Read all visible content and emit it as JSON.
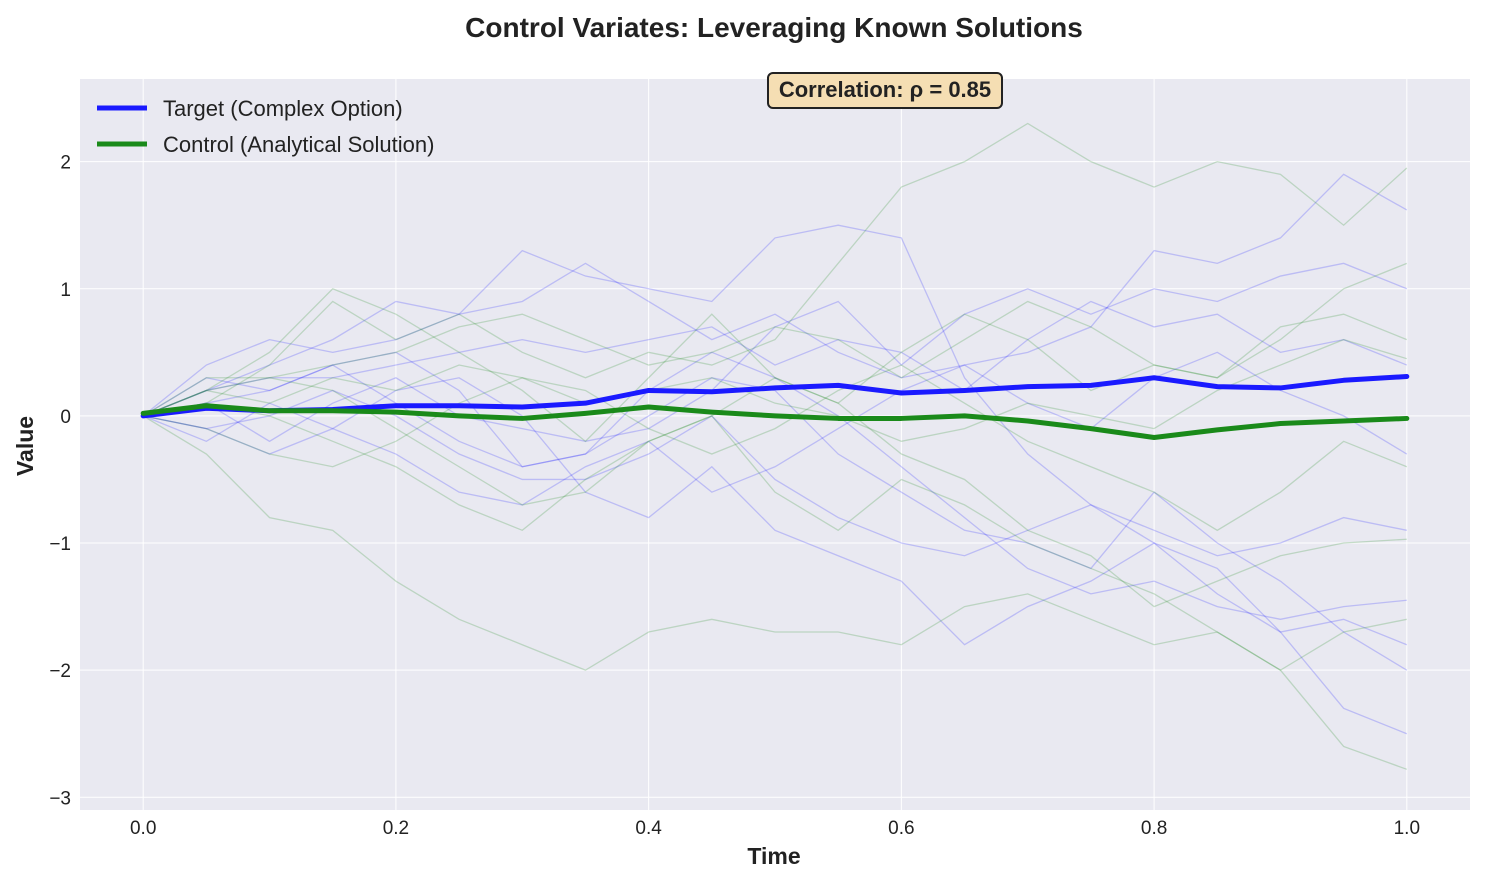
{
  "chart_data": {
    "type": "line",
    "title": "Control Variates: Leveraging Known Solutions",
    "xlabel": "Time",
    "ylabel": "Value",
    "xlim": [
      -0.05,
      1.05
    ],
    "ylim": [
      -3.1,
      2.65
    ],
    "x_ticks": [
      0.0,
      0.2,
      0.4,
      0.6,
      0.8,
      1.0
    ],
    "x_tick_labels": [
      "0.0",
      "0.2",
      "0.4",
      "0.6",
      "0.8",
      "1.0"
    ],
    "y_ticks": [
      2,
      1,
      0,
      -1,
      -2,
      -3
    ],
    "y_tick_labels": [
      "2",
      "1",
      "0",
      "−1",
      "−2",
      "−3"
    ],
    "grid": true,
    "legend_position": "top-left",
    "annotation": "Correlation: ρ = 0.85",
    "colors": {
      "target": "#1a1aff",
      "control": "#1a8a1a",
      "plot_bg": "#e9e9f1",
      "annot_bg": "#f5deb3"
    },
    "series": [
      {
        "name": "Target (Complex Option)",
        "role": "mean",
        "x": [
          0.0,
          0.05,
          0.1,
          0.15,
          0.2,
          0.25,
          0.3,
          0.35,
          0.4,
          0.45,
          0.5,
          0.55,
          0.6,
          0.65,
          0.7,
          0.75,
          0.8,
          0.85,
          0.9,
          0.95,
          1.0
        ],
        "y": [
          0.0,
          0.06,
          0.04,
          0.05,
          0.08,
          0.08,
          0.07,
          0.1,
          0.2,
          0.19,
          0.22,
          0.24,
          0.18,
          0.2,
          0.23,
          0.24,
          0.3,
          0.23,
          0.22,
          0.28,
          0.31
        ]
      },
      {
        "name": "Control (Analytical Solution)",
        "role": "mean",
        "x": [
          0.0,
          0.05,
          0.1,
          0.15,
          0.2,
          0.25,
          0.3,
          0.35,
          0.4,
          0.45,
          0.5,
          0.55,
          0.6,
          0.65,
          0.7,
          0.75,
          0.8,
          0.85,
          0.9,
          0.95,
          1.0
        ],
        "y": [
          0.02,
          0.08,
          0.04,
          0.04,
          0.03,
          0.0,
          -0.02,
          0.02,
          0.07,
          0.03,
          0.0,
          -0.02,
          -0.02,
          0.0,
          -0.04,
          -0.1,
          -0.17,
          -0.11,
          -0.06,
          -0.04,
          -0.02
        ]
      }
    ],
    "paths_x": [
      0.0,
      0.05,
      0.1,
      0.15,
      0.2,
      0.25,
      0.3,
      0.35,
      0.4,
      0.45,
      0.5,
      0.55,
      0.6,
      0.65,
      0.7,
      0.75,
      0.8,
      0.85,
      0.9,
      0.95,
      1.0
    ],
    "target_paths": [
      [
        0.0,
        0.4,
        0.6,
        0.5,
        0.6,
        0.8,
        0.9,
        1.2,
        0.9,
        0.6,
        0.8,
        0.5,
        0.3,
        0.4,
        0.5,
        0.7,
        1.3,
        1.2,
        1.4,
        1.9,
        1.62
      ],
      [
        0.0,
        0.2,
        0.4,
        0.6,
        0.9,
        0.8,
        1.3,
        1.1,
        1.0,
        0.9,
        1.4,
        1.5,
        1.4,
        0.3,
        -0.3,
        -0.7,
        -1.0,
        -1.4,
        -1.7,
        -1.6,
        -1.8
      ],
      [
        0.0,
        0.1,
        -0.2,
        0.1,
        0.3,
        0.0,
        -0.1,
        -0.2,
        -0.1,
        0.2,
        0.7,
        0.9,
        0.4,
        0.8,
        1.0,
        0.8,
        1.0,
        0.9,
        1.1,
        1.2,
        1.0
      ],
      [
        0.0,
        -0.1,
        -0.3,
        -0.1,
        0.2,
        0.3,
        0.0,
        -0.6,
        -0.8,
        -0.4,
        -0.9,
        -1.1,
        -1.3,
        -1.8,
        -1.5,
        -1.3,
        -1.0,
        -1.2,
        -1.7,
        -2.3,
        -2.5
      ],
      [
        0.0,
        0.3,
        0.2,
        0.4,
        0.5,
        0.2,
        -0.4,
        -0.3,
        0.0,
        0.3,
        0.2,
        -0.3,
        -0.6,
        -0.9,
        -1.0,
        -1.2,
        -0.6,
        -1.0,
        -1.3,
        -1.7,
        -2.0
      ],
      [
        0.0,
        -0.2,
        0.1,
        -0.1,
        -0.3,
        -0.6,
        -0.7,
        -0.4,
        -0.2,
        -0.6,
        -0.4,
        -0.1,
        0.2,
        0.4,
        0.1,
        -0.1,
        0.3,
        0.5,
        0.2,
        0.0,
        -0.3
      ],
      [
        0.0,
        0.1,
        0.2,
        0.4,
        0.1,
        -0.2,
        -0.4,
        -0.3,
        0.2,
        0.5,
        0.3,
        0.0,
        -0.4,
        -0.8,
        -1.2,
        -1.4,
        -1.3,
        -1.5,
        -1.6,
        -1.5,
        -1.45
      ],
      [
        0.0,
        0.2,
        0.3,
        0.3,
        0.4,
        0.5,
        0.6,
        0.5,
        0.6,
        0.7,
        0.4,
        0.6,
        0.5,
        0.2,
        0.6,
        0.9,
        0.7,
        0.8,
        0.5,
        0.6,
        0.4
      ],
      [
        0.0,
        -0.1,
        0.0,
        0.2,
        0.0,
        -0.3,
        -0.5,
        -0.5,
        -0.3,
        0.0,
        -0.5,
        -0.8,
        -1.0,
        -1.1,
        -0.9,
        -0.7,
        -0.9,
        -1.1,
        -1.0,
        -0.8,
        -0.9
      ]
    ],
    "control_paths": [
      [
        0.0,
        0.1,
        0.4,
        0.9,
        0.6,
        0.8,
        0.5,
        0.3,
        0.5,
        0.4,
        0.6,
        1.2,
        1.8,
        2.0,
        2.3,
        2.0,
        1.8,
        2.0,
        1.9,
        1.5,
        1.95
      ],
      [
        0.0,
        -0.3,
        -0.8,
        -0.9,
        -1.3,
        -1.6,
        -1.8,
        -2.0,
        -1.7,
        -1.6,
        -1.7,
        -1.7,
        -1.8,
        -1.5,
        -1.4,
        -1.6,
        -1.8,
        -1.7,
        -2.0,
        -2.6,
        -2.78
      ],
      [
        0.0,
        0.2,
        0.5,
        1.0,
        0.8,
        0.5,
        0.2,
        -0.2,
        0.3,
        0.8,
        0.3,
        0.1,
        0.5,
        0.8,
        0.6,
        0.2,
        0.4,
        0.3,
        0.6,
        1.0,
        1.2
      ],
      [
        0.0,
        0.2,
        0.3,
        0.2,
        -0.1,
        -0.4,
        -0.7,
        -0.6,
        -0.2,
        0.0,
        0.3,
        0.1,
        -0.3,
        -0.5,
        -0.9,
        -1.1,
        -1.5,
        -1.3,
        -1.1,
        -1.0,
        -0.97
      ],
      [
        0.0,
        0.1,
        0.0,
        -0.2,
        -0.4,
        -0.7,
        -0.9,
        -0.5,
        -0.2,
        0.0,
        -0.6,
        -0.9,
        -0.5,
        -0.7,
        -1.0,
        -1.2,
        -1.4,
        -1.7,
        -2.0,
        -1.7,
        -1.6
      ],
      [
        0.0,
        0.3,
        0.3,
        0.4,
        0.5,
        0.7,
        0.8,
        0.6,
        0.4,
        0.5,
        0.7,
        0.6,
        0.3,
        0.6,
        0.9,
        0.7,
        0.4,
        0.3,
        0.7,
        0.8,
        0.6
      ],
      [
        0.0,
        -0.1,
        -0.3,
        -0.4,
        -0.2,
        0.1,
        0.3,
        0.2,
        -0.1,
        -0.3,
        -0.1,
        0.2,
        0.4,
        0.1,
        -0.2,
        -0.4,
        -0.6,
        -0.9,
        -0.6,
        -0.2,
        -0.4
      ],
      [
        0.0,
        0.2,
        0.1,
        0.3,
        0.2,
        0.4,
        0.3,
        0.1,
        0.2,
        0.3,
        0.1,
        0.0,
        -0.2,
        -0.1,
        0.1,
        0.0,
        -0.1,
        0.2,
        0.4,
        0.6,
        0.45
      ]
    ]
  }
}
